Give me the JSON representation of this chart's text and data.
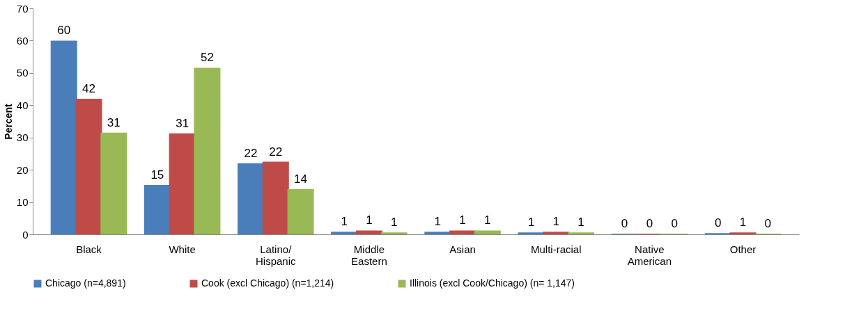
{
  "chart_data": {
    "type": "bar",
    "ylabel": "Percent",
    "categories": [
      "Black",
      "White",
      "Latino/ Hispanic",
      "Middle Eastern",
      "Asian",
      "Multi-racial",
      "Native American",
      "Other"
    ],
    "series": [
      {
        "name": "Chicago (n=4,891)",
        "color": "#4a7ebb",
        "values": [
          60,
          15.3,
          22,
          0.8,
          0.8,
          0.6,
          0.2,
          0.4
        ],
        "value_labels": [
          "60",
          "15",
          "22",
          "1",
          "1",
          "1",
          "0",
          "0"
        ]
      },
      {
        "name": "Cook (excl Chicago) (n=1,214)",
        "color": "#be4b48",
        "values": [
          42,
          31.3,
          22.5,
          1.2,
          1.2,
          0.8,
          0.2,
          0.6
        ],
        "value_labels": [
          "42",
          "31",
          "22",
          "1",
          "1",
          "1",
          "0",
          "1"
        ]
      },
      {
        "name": "Illinois (excl Cook/Chicago) (n= 1,147)",
        "color": "#98b954",
        "values": [
          31.5,
          51.6,
          14,
          0.6,
          1.2,
          0.6,
          0.2,
          0.2
        ],
        "value_labels": [
          "31",
          "52",
          "14",
          "1",
          "1",
          "1",
          "0",
          "0"
        ]
      }
    ],
    "ylim": [
      0,
      70
    ],
    "yticks": [
      0,
      10,
      20,
      30,
      40,
      50,
      60,
      70
    ],
    "grid": false,
    "legend": "bottom"
  }
}
